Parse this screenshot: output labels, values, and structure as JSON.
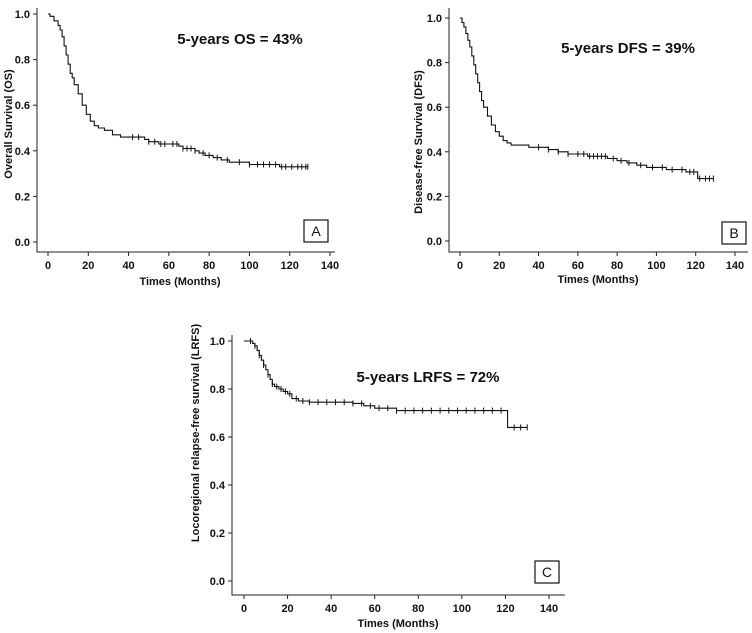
{
  "chart_data": [
    {
      "type": "line",
      "panel": "A",
      "title": "",
      "annotation": "5-years OS = 43%",
      "xlabel": "Times (Months)",
      "ylabel": "Overall Survival (OS)",
      "xlim": [
        0,
        140
      ],
      "ylim": [
        0,
        1.0
      ],
      "xticks": [
        "0",
        "20",
        "40",
        "60",
        "80",
        "100",
        "120",
        "140"
      ],
      "yticks": [
        "0.0",
        "0.2",
        "0.4",
        "0.6",
        "0.8",
        "1.0"
      ],
      "grid": false,
      "series": [
        {
          "name": "Overall Survival",
          "x": [
            0,
            1,
            3,
            5,
            6,
            7,
            8,
            9,
            10,
            11,
            12,
            13,
            15,
            17,
            19,
            21,
            23,
            25,
            28,
            32,
            36,
            42,
            48,
            50,
            55,
            60,
            62,
            65,
            67,
            70,
            73,
            75,
            78,
            82,
            86,
            90,
            95,
            100,
            105,
            110,
            115,
            120,
            125,
            129
          ],
          "y": [
            1.0,
            0.99,
            0.97,
            0.95,
            0.93,
            0.9,
            0.86,
            0.82,
            0.78,
            0.74,
            0.72,
            0.69,
            0.65,
            0.6,
            0.56,
            0.53,
            0.51,
            0.5,
            0.49,
            0.47,
            0.46,
            0.46,
            0.45,
            0.44,
            0.43,
            0.43,
            0.43,
            0.42,
            0.41,
            0.41,
            0.4,
            0.39,
            0.38,
            0.37,
            0.36,
            0.35,
            0.35,
            0.34,
            0.34,
            0.34,
            0.33,
            0.33,
            0.33,
            0.33
          ]
        }
      ],
      "censored": [
        42,
        45,
        50,
        53,
        56,
        58,
        62,
        64,
        67,
        69,
        71,
        73,
        77,
        80,
        84,
        89,
        95,
        100,
        104,
        107,
        110,
        113,
        116,
        118,
        121,
        124,
        126,
        128,
        129
      ]
    },
    {
      "type": "line",
      "panel": "B",
      "title": "",
      "annotation": "5-years DFS = 39%",
      "xlabel": "Times (Months)",
      "ylabel": "Disease-free Survival (DFS)",
      "xlim": [
        0,
        140
      ],
      "ylim": [
        0,
        1.0
      ],
      "xticks": [
        "0",
        "20",
        "40",
        "60",
        "80",
        "100",
        "120",
        "140"
      ],
      "yticks": [
        "0.0",
        "0.2",
        "0.4",
        "0.6",
        "0.8",
        "1.0"
      ],
      "grid": false,
      "series": [
        {
          "name": "Disease-free Survival",
          "x": [
            0,
            1,
            2,
            3,
            4,
            5,
            6,
            7,
            8,
            9,
            10,
            11,
            12,
            14,
            16,
            18,
            20,
            22,
            24,
            26,
            30,
            35,
            40,
            45,
            50,
            55,
            60,
            65,
            70,
            75,
            80,
            85,
            90,
            95,
            100,
            105,
            110,
            115,
            120,
            121,
            125,
            129
          ],
          "y": [
            1.0,
            0.98,
            0.96,
            0.93,
            0.9,
            0.87,
            0.83,
            0.79,
            0.75,
            0.71,
            0.67,
            0.63,
            0.6,
            0.56,
            0.52,
            0.49,
            0.47,
            0.45,
            0.44,
            0.43,
            0.43,
            0.42,
            0.42,
            0.41,
            0.4,
            0.39,
            0.39,
            0.38,
            0.38,
            0.37,
            0.36,
            0.35,
            0.34,
            0.33,
            0.33,
            0.32,
            0.32,
            0.31,
            0.31,
            0.28,
            0.28,
            0.28
          ]
        }
      ],
      "censored": [
        40,
        45,
        50,
        55,
        60,
        63,
        66,
        68,
        70,
        72,
        74,
        78,
        82,
        86,
        92,
        98,
        103,
        108,
        113,
        117,
        119,
        122,
        125,
        127,
        129
      ]
    },
    {
      "type": "line",
      "panel": "C",
      "title": "",
      "annotation": "5-years LRFS = 72%",
      "xlabel": "Times (Months)",
      "ylabel": "Locoregional relapse-free survival (LRFS)",
      "xlim": [
        0,
        140
      ],
      "ylim": [
        0,
        1.0
      ],
      "xticks": [
        "0",
        "20",
        "40",
        "60",
        "80",
        "100",
        "120",
        "140"
      ],
      "yticks": [
        "0.0",
        "0.2",
        "0.4",
        "0.6",
        "0.8",
        "1.0"
      ],
      "grid": false,
      "series": [
        {
          "name": "Locoregional relapse-free survival",
          "x": [
            0,
            2,
            4,
            5,
            6,
            7,
            8,
            9,
            10,
            11,
            12,
            13,
            14,
            16,
            18,
            20,
            22,
            25,
            30,
            40,
            50,
            55,
            60,
            65,
            70,
            80,
            90,
            100,
            110,
            120,
            121,
            125,
            130
          ],
          "y": [
            1.0,
            1.0,
            0.99,
            0.98,
            0.96,
            0.94,
            0.92,
            0.9,
            0.88,
            0.86,
            0.84,
            0.82,
            0.81,
            0.8,
            0.79,
            0.78,
            0.76,
            0.75,
            0.745,
            0.745,
            0.74,
            0.73,
            0.72,
            0.72,
            0.71,
            0.71,
            0.71,
            0.71,
            0.71,
            0.71,
            0.64,
            0.64,
            0.64
          ]
        }
      ],
      "censored": [
        3,
        5,
        7,
        9,
        11,
        13,
        15,
        17,
        19,
        21,
        24,
        27,
        30,
        34,
        38,
        42,
        46,
        50,
        54,
        58,
        62,
        66,
        70,
        74,
        78,
        82,
        86,
        90,
        94,
        98,
        102,
        106,
        110,
        114,
        118,
        124,
        127,
        130
      ]
    }
  ]
}
